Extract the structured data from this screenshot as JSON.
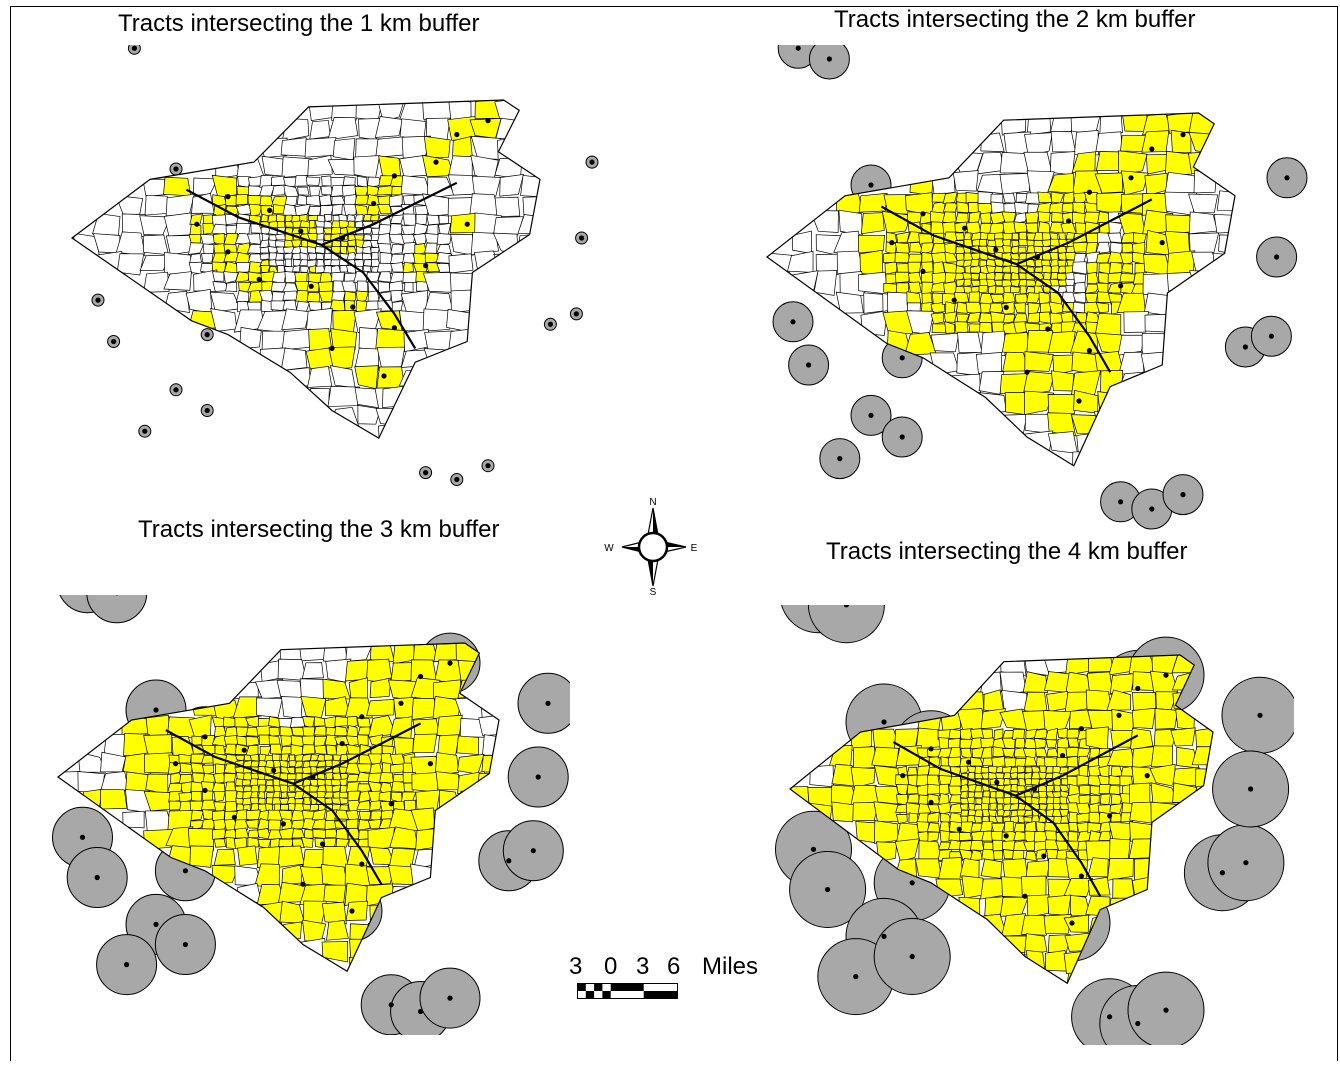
{
  "panels": [
    {
      "title": "Tracts intersecting the 1 km buffer",
      "buffer_km": 1
    },
    {
      "title": "Tracts intersecting the 2 km buffer",
      "buffer_km": 2
    },
    {
      "title": "Tracts intersecting the 3 km buffer",
      "buffer_km": 3
    },
    {
      "title": "Tracts intersecting the 4 km buffer",
      "buffer_km": 4
    }
  ],
  "compass": {
    "north": "N",
    "south": "S",
    "east": "E",
    "west": "W"
  },
  "scale_bar": {
    "ticks": [
      "3",
      "0",
      "3",
      "6"
    ],
    "unit": "Miles"
  },
  "colors": {
    "tract_selected": "#ffff00",
    "tract_other": "#ffffff",
    "buffer": "#a8a8a8",
    "site": "#000000",
    "outline": "#000000"
  }
}
